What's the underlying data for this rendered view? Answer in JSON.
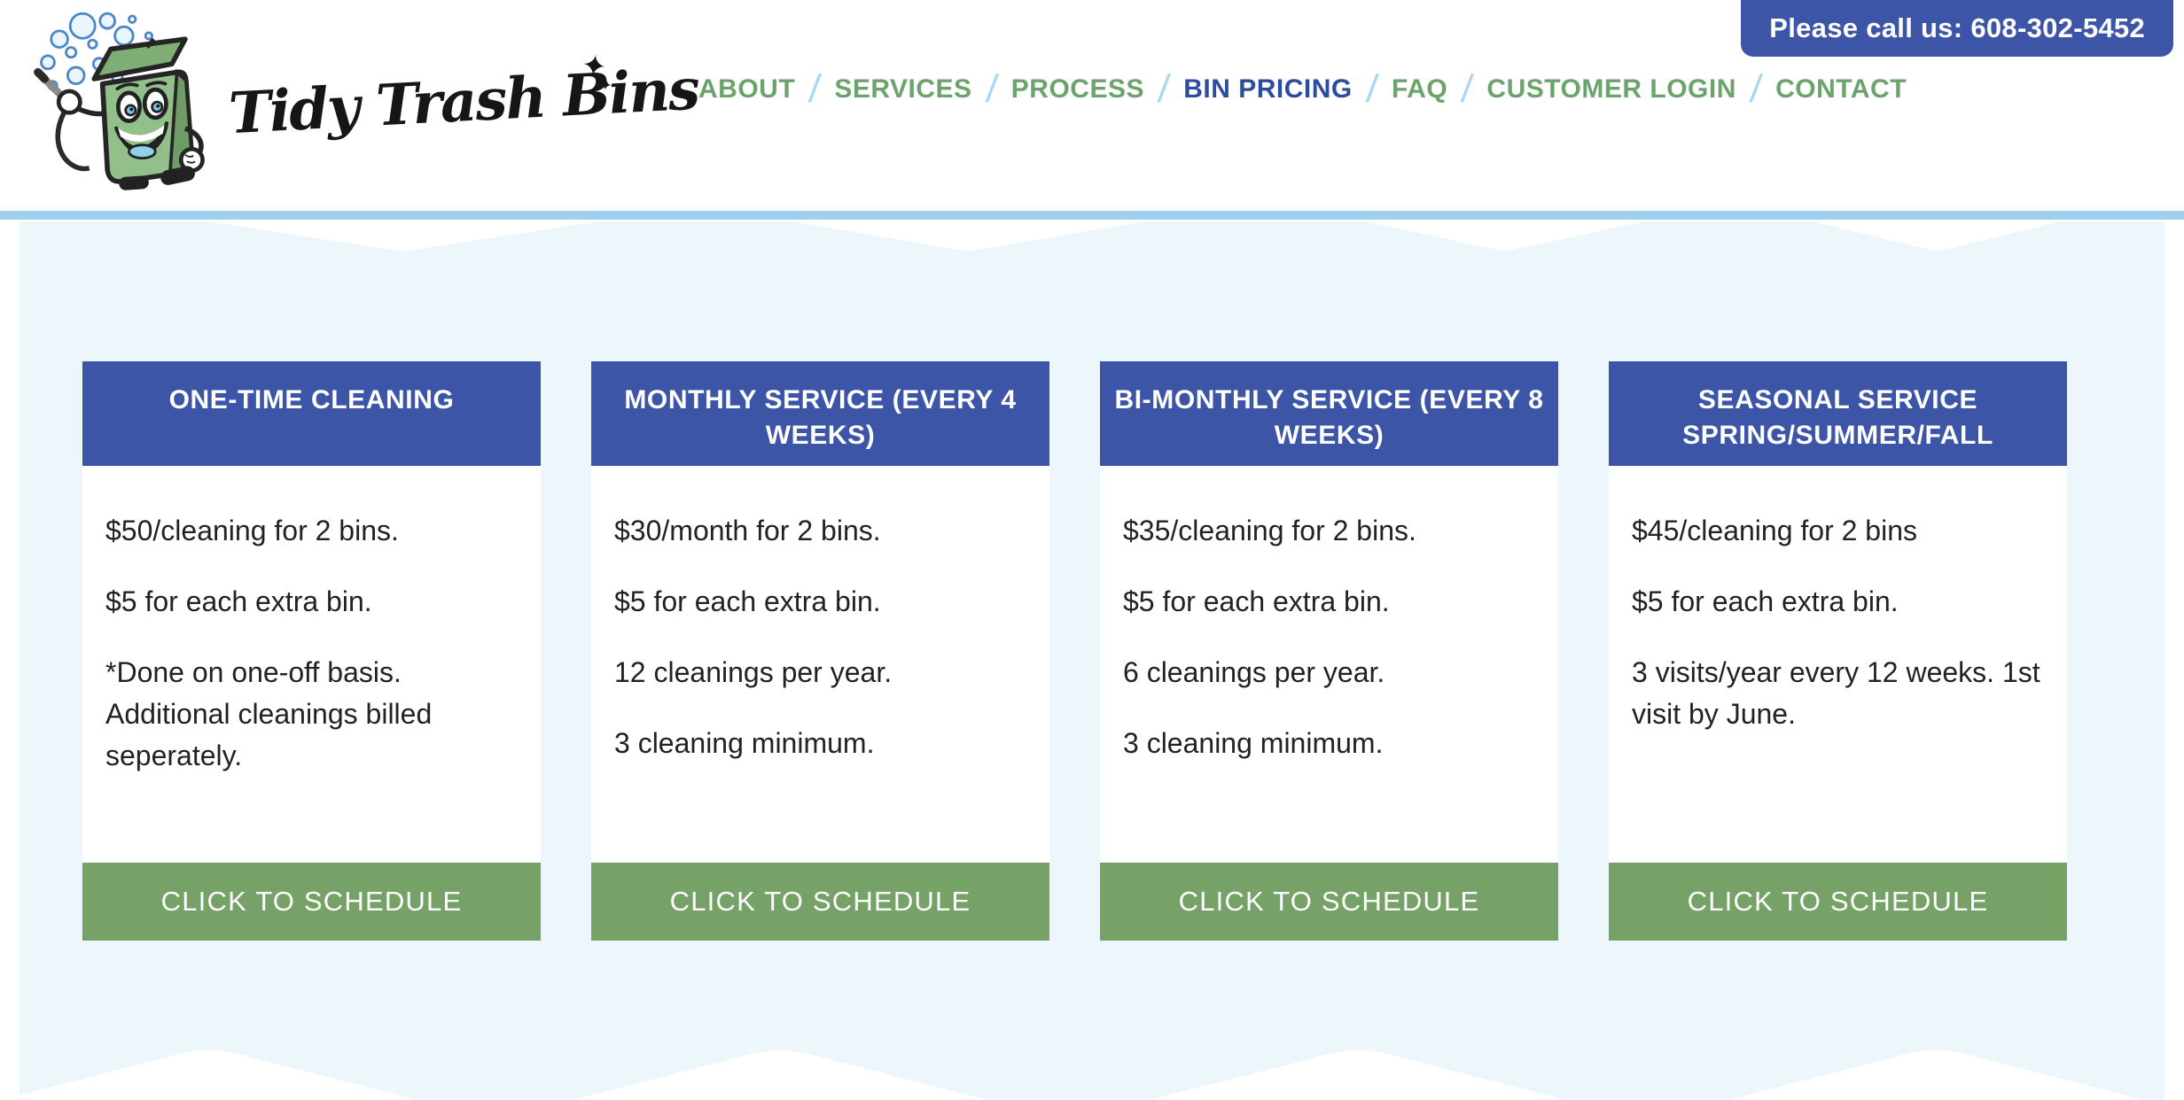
{
  "header": {
    "logo_text": "Tidy Trash Bins",
    "logo_sparkle": "✦",
    "logo_sparkle_small": "✦✦",
    "nav_items": [
      {
        "label": "ABOUT",
        "active": false
      },
      {
        "label": "SERVICES",
        "active": false
      },
      {
        "label": "PROCESS",
        "active": false
      },
      {
        "label": "BIN PRICING",
        "active": true
      },
      {
        "label": "FAQ",
        "active": false
      },
      {
        "label": "CUSTOMER LOGIN",
        "active": false
      },
      {
        "label": "CONTACT",
        "active": false
      }
    ],
    "phone_banner": "Please call us: 608-302-5452"
  },
  "pricing": {
    "cards": [
      {
        "title": "ONE-TIME CLEANING",
        "lines": [
          "$50/cleaning for 2 bins.",
          "$5 for each extra bin.",
          "*Done on one-off basis. Additional cleanings billed seperately."
        ],
        "button": "CLICK TO SCHEDULE"
      },
      {
        "title": "MONTHLY SERVICE (EVERY 4 WEEKS)",
        "lines": [
          "$30/month for 2 bins.",
          "$5 for each extra bin.",
          "12 cleanings per year.",
          "3 cleaning minimum."
        ],
        "button": "CLICK TO SCHEDULE"
      },
      {
        "title": "BI-MONTHLY SERVICE (EVERY 8 WEEKS)",
        "lines": [
          "$35/cleaning for 2 bins.",
          "$5 for each extra bin.",
          "6 cleanings per year.",
          "3 cleaning minimum."
        ],
        "button": "CLICK TO SCHEDULE"
      },
      {
        "title": "SEASONAL SERVICE SPRING/SUMMER/FALL",
        "lines": [
          "$45/cleaning for 2 bins",
          "$5 for each extra bin.",
          "3 visits/year every 12 weeks. 1st visit by June."
        ],
        "button": "CLICK TO SCHEDULE"
      }
    ]
  },
  "colors": {
    "brand-blue": "#3d55a6",
    "active-blue": "#2c4c9e",
    "nav-green": "#6ba36c",
    "button-green": "#76a267",
    "slash-blue": "#a7d7f4",
    "bar-blue": "#9fd1ee",
    "panel-blue": "#ecf6fb",
    "text-dark": "#222222"
  }
}
